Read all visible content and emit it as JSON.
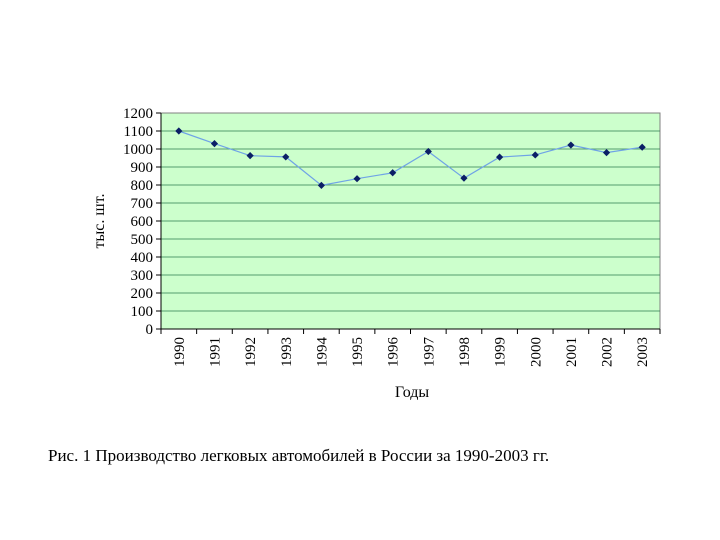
{
  "chart_data": {
    "type": "line",
    "title": "",
    "xlabel": "Годы",
    "ylabel": "тыс. шт.",
    "categories": [
      "1990",
      "1991",
      "1992",
      "1993",
      "1994",
      "1995",
      "1996",
      "1997",
      "1998",
      "1999",
      "2000",
      "2001",
      "2002",
      "2003"
    ],
    "series": [
      {
        "values": [
          1100,
          1030,
          963,
          956,
          798,
          835,
          868,
          986,
          838,
          955,
          967,
          1022,
          980,
          1010
        ]
      }
    ],
    "yticks": [
      "0",
      "100",
      "200",
      "300",
      "400",
      "500",
      "600",
      "700",
      "800",
      "900",
      "1000",
      "1100",
      "1200"
    ],
    "ylim": [
      0,
      1200
    ],
    "grid": true,
    "legend": "none"
  },
  "colors": {
    "plot_background": "#ccffcc",
    "gridline": "#2e7d4f",
    "line": "#6fa3e6",
    "marker": "#0b1f66"
  },
  "caption": "Рис. 1 Производство легковых автомобилей в России за 1990-2003 гг."
}
